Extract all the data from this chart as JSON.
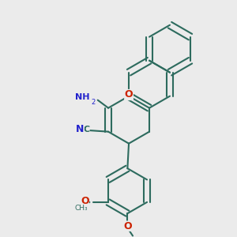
{
  "background_color": "#ebebeb",
  "bond_color": "#2d6b5e",
  "O_color": "#cc2200",
  "N_color": "#2222cc",
  "lw": 1.5,
  "figsize": [
    3.0,
    3.0
  ],
  "dpi": 100,
  "xlim": [
    0.05,
    0.95
  ],
  "ylim": [
    0.05,
    0.95
  ]
}
